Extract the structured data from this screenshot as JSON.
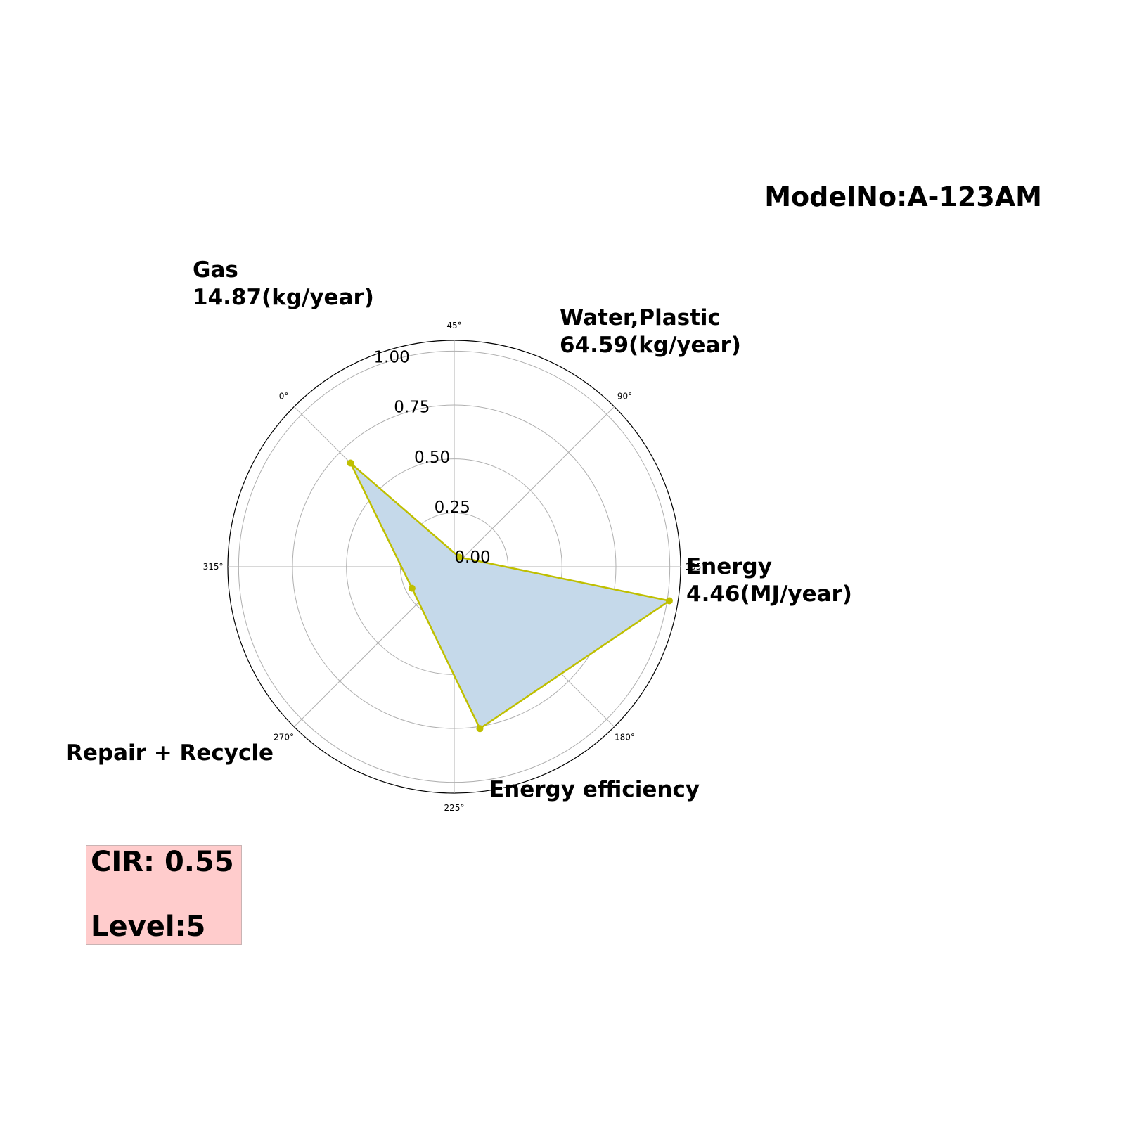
{
  "model": {
    "label": "ModelNo:A-123AM"
  },
  "chart_data": {
    "type": "radar",
    "grid": true,
    "rlim": [
      0,
      1.05
    ],
    "radial_ticks": [
      "0.00",
      "0.25",
      "0.50",
      "0.75",
      "1.00"
    ],
    "radial_tick_values": [
      0,
      0.25,
      0.5,
      0.75,
      1.0
    ],
    "angular_tick_labels": [
      "0°",
      "45°",
      "90°",
      "135°",
      "180°",
      "225°",
      "270°",
      "315°"
    ],
    "axes": [
      {
        "name": "Gas",
        "value_text": "14.87(kg/year)"
      },
      {
        "name": "Water,Plastic",
        "value_text": "64.59(kg/year)"
      },
      {
        "name": "Energy",
        "value_text": "4.46(MJ/year)"
      },
      {
        "name": "Energy efficiency",
        "value_text": ""
      },
      {
        "name": "Repair + Recycle",
        "value_text": ""
      }
    ],
    "series": [
      {
        "values": [
          0.68,
          0.05,
          1.01,
          0.76,
          0.22
        ],
        "color": "#bfbf00",
        "fill": "#c5d9ea"
      }
    ]
  },
  "score": {
    "cir": "CIR: 0.55",
    "level": "Level:5",
    "background": "#ffcccc"
  }
}
